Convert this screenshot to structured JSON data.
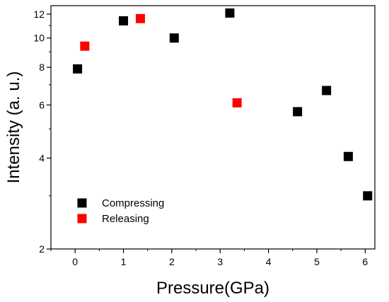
{
  "chart_data": {
    "type": "scatter",
    "title": "",
    "xlabel": "Pressure(GPa)",
    "ylabel": "Intensity (a. u.)",
    "xlim": [
      -0.5,
      6.2
    ],
    "ylim": [
      2,
      12.8
    ],
    "yscale": "log",
    "xticks": [
      0,
      1,
      2,
      3,
      4,
      5,
      6
    ],
    "yticks": [
      2,
      4,
      6,
      8,
      10,
      12
    ],
    "grid": false,
    "legend_position": "bottom-left",
    "series": [
      {
        "name": "Compressing",
        "color": "#000000",
        "marker": "square",
        "x": [
          0.05,
          1.0,
          2.05,
          3.2,
          4.6,
          5.2,
          5.65,
          6.05
        ],
        "y": [
          7.9,
          11.4,
          10.0,
          12.1,
          5.7,
          6.7,
          4.05,
          3.0
        ]
      },
      {
        "name": "Releasing",
        "color": "#ff0000",
        "marker": "square",
        "x": [
          0.2,
          1.35,
          3.35
        ],
        "y": [
          9.4,
          11.6,
          6.1
        ]
      }
    ]
  }
}
